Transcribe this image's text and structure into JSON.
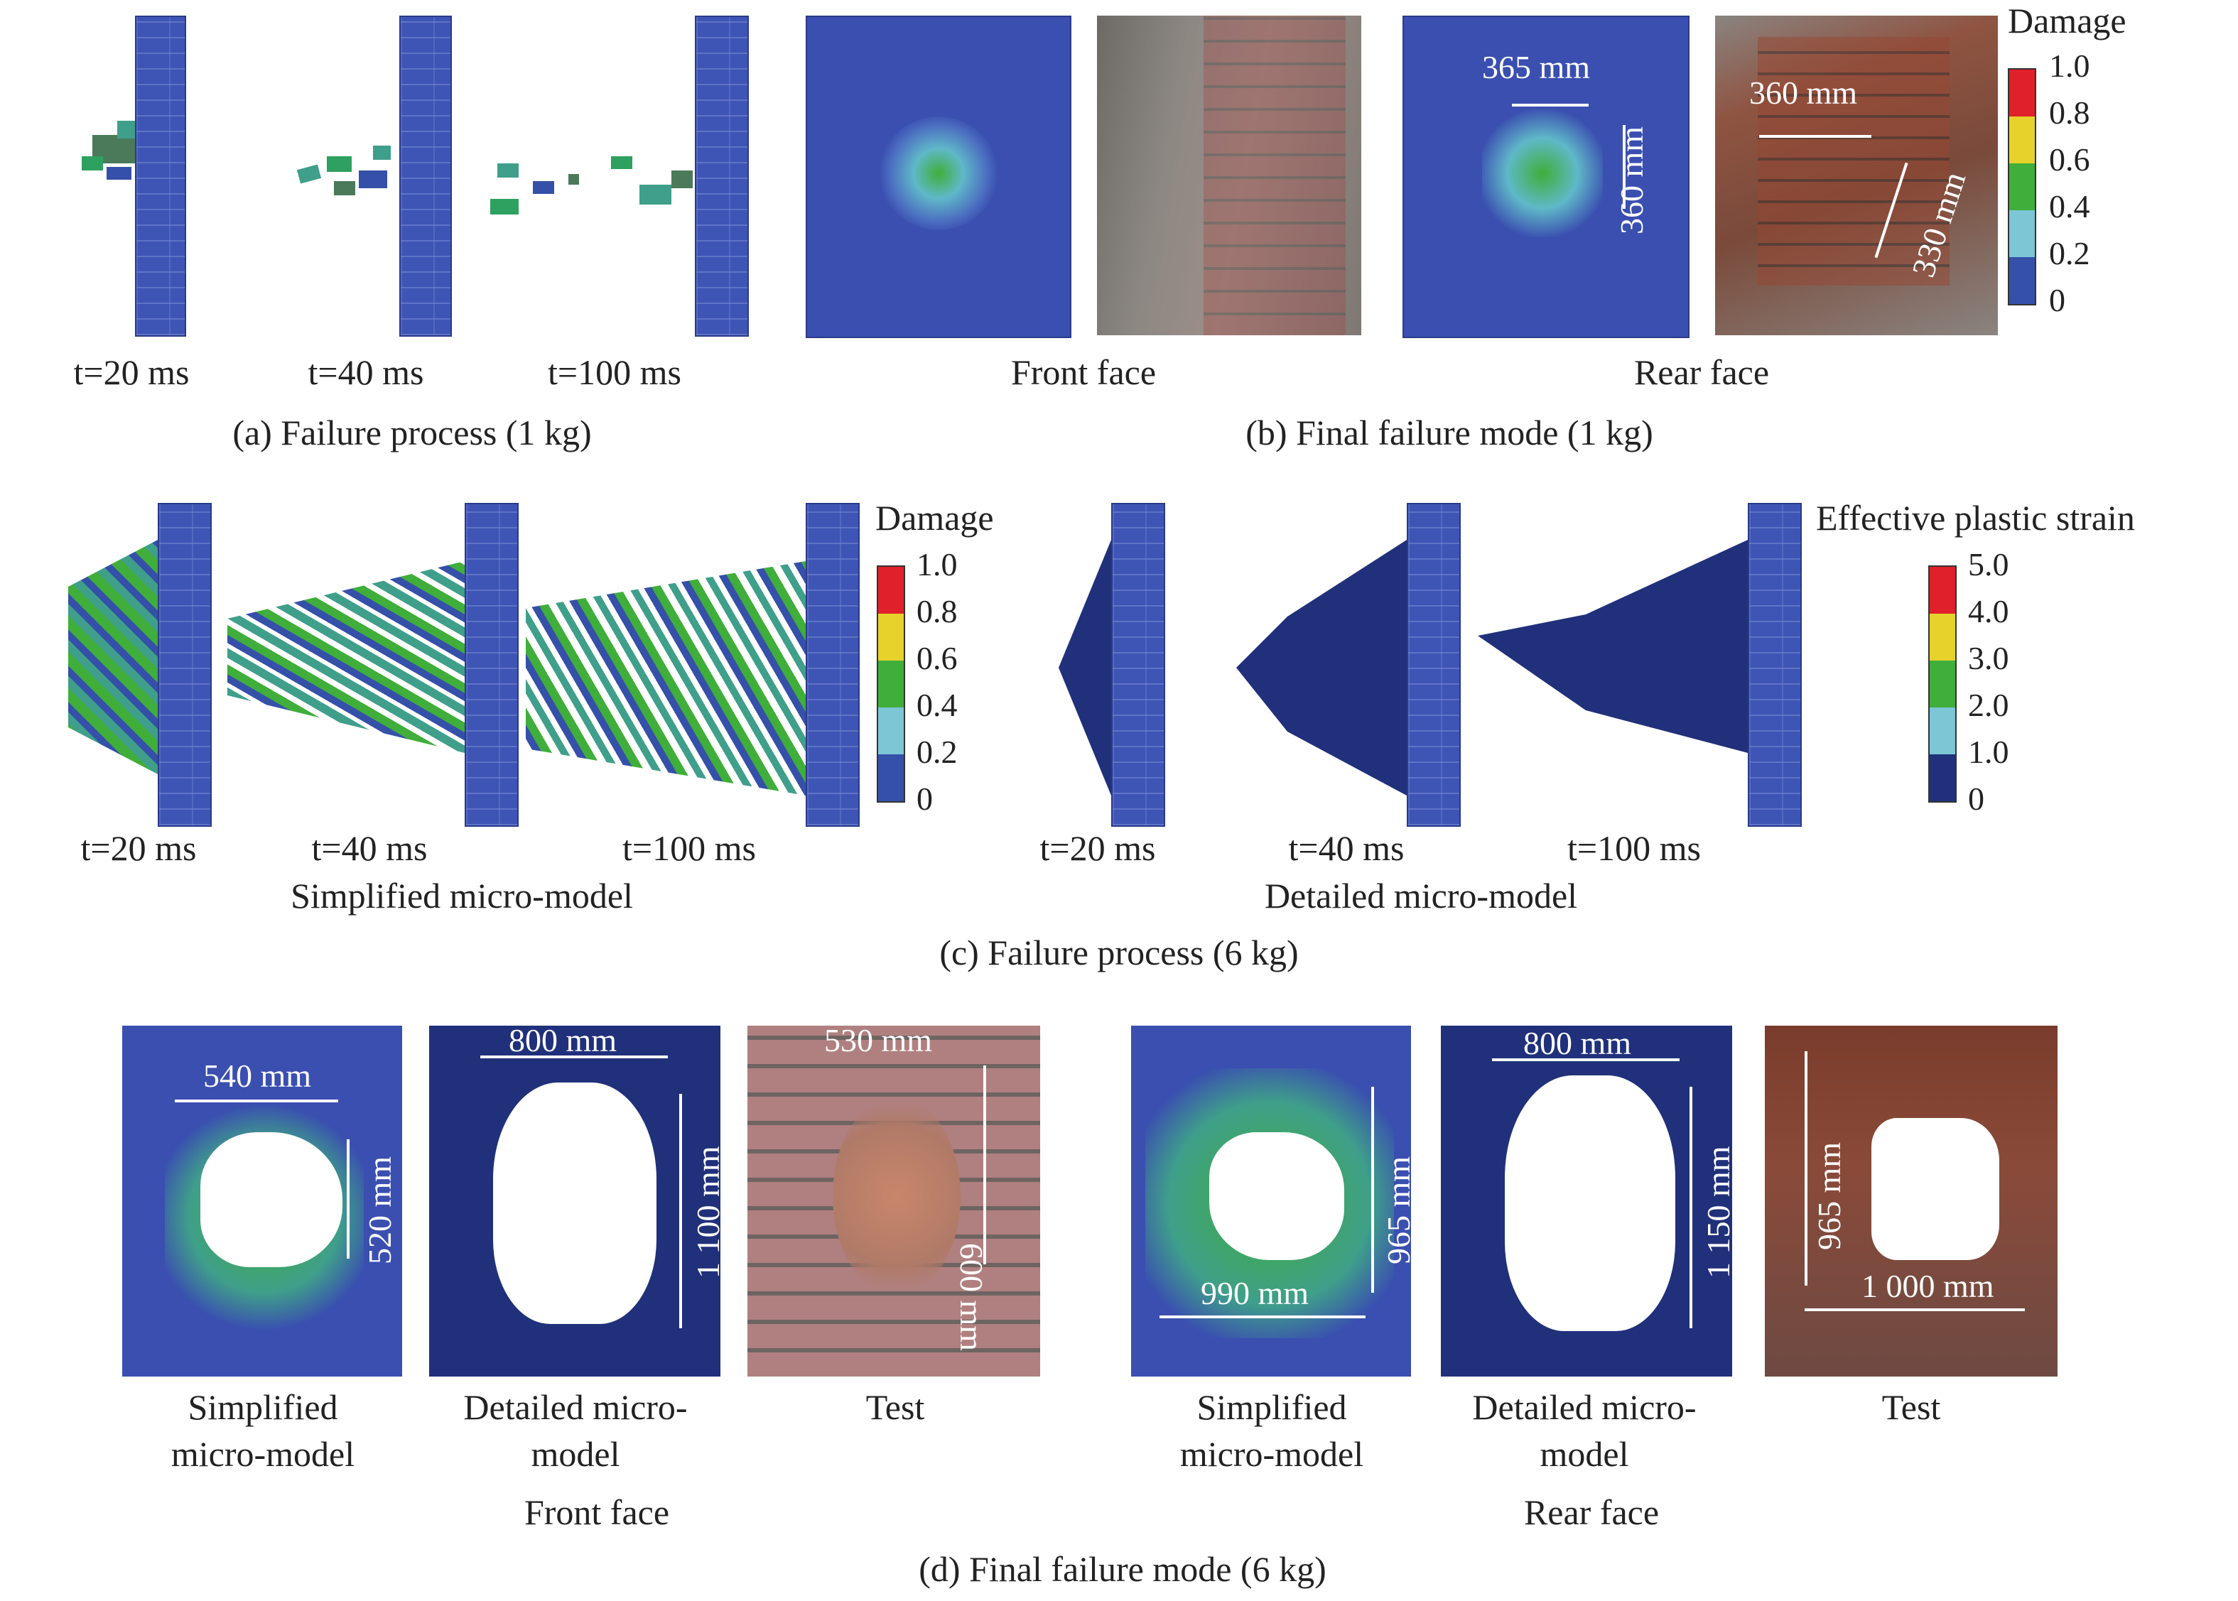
{
  "row_a": {
    "time_labels": [
      "t=20 ms",
      "t=40 ms",
      "t=100 ms"
    ],
    "caption": "(a) Failure process (1 kg)"
  },
  "row_b": {
    "front_label": "Front face",
    "rear_label": "Rear face",
    "caption": "(b) Final failure mode (1 kg)",
    "dims": {
      "d365": "365 mm",
      "d360v": "360 mm",
      "d360h": "360 mm",
      "d330": "330 mm"
    },
    "colorbar": {
      "title": "Damage",
      "ticks": [
        "1.0",
        "0.8",
        "0.6",
        "0.4",
        "0.2",
        "0"
      ]
    }
  },
  "row_c": {
    "simplified_times": [
      "t=20 ms",
      "t=40 ms",
      "t=100 ms"
    ],
    "detailed_times": [
      "t=20 ms",
      "t=40 ms",
      "t=100 ms"
    ],
    "simplified_label": "Simplified micro-model",
    "detailed_label": "Detailed micro-model",
    "caption": "(c) Failure process (6 kg)",
    "damage_colorbar": {
      "title": "Damage",
      "ticks": [
        "1.0",
        "0.8",
        "0.6",
        "0.4",
        "0.2",
        "0"
      ]
    },
    "strain_colorbar": {
      "title": "Effective plastic strain",
      "ticks": [
        "5.0",
        "4.0",
        "3.0",
        "2.0",
        "1.0",
        "0"
      ]
    }
  },
  "row_d": {
    "front": {
      "labels": [
        "Simplified\nmicro-model",
        "Detailed micro-\nmodel",
        "Test"
      ],
      "label_lines": [
        [
          "Simplified",
          "micro-model"
        ],
        [
          "Detailed micro-",
          "model"
        ],
        [
          "Test"
        ]
      ],
      "group_label": "Front face",
      "dims": {
        "d540": "540 mm",
        "d520": "520 mm",
        "d800": "800 mm",
        "d1100": "1 100 mm",
        "d530": "530 mm",
        "d600": "600 mm"
      }
    },
    "rear": {
      "label_lines": [
        [
          "Simplified",
          "micro-model"
        ],
        [
          "Detailed micro-",
          "model"
        ],
        [
          "Test"
        ]
      ],
      "group_label": "Rear face",
      "dims": {
        "d965a": "965 mm",
        "d990": "990 mm",
        "d800": "800 mm",
        "d1150": "1 150 mm",
        "d965b": "965 mm",
        "d1000": "1 000 mm"
      }
    },
    "caption": "(d) Final failure mode (6 kg)"
  },
  "colors": {
    "fe_blue": "#3a4fb0",
    "damage_scale": [
      "#e0202a",
      "#e6d22a",
      "#3fae3a",
      "#7cc6d6",
      "#3550a8"
    ],
    "brick": "#8a5040",
    "photo_gray": "#8a8680"
  }
}
